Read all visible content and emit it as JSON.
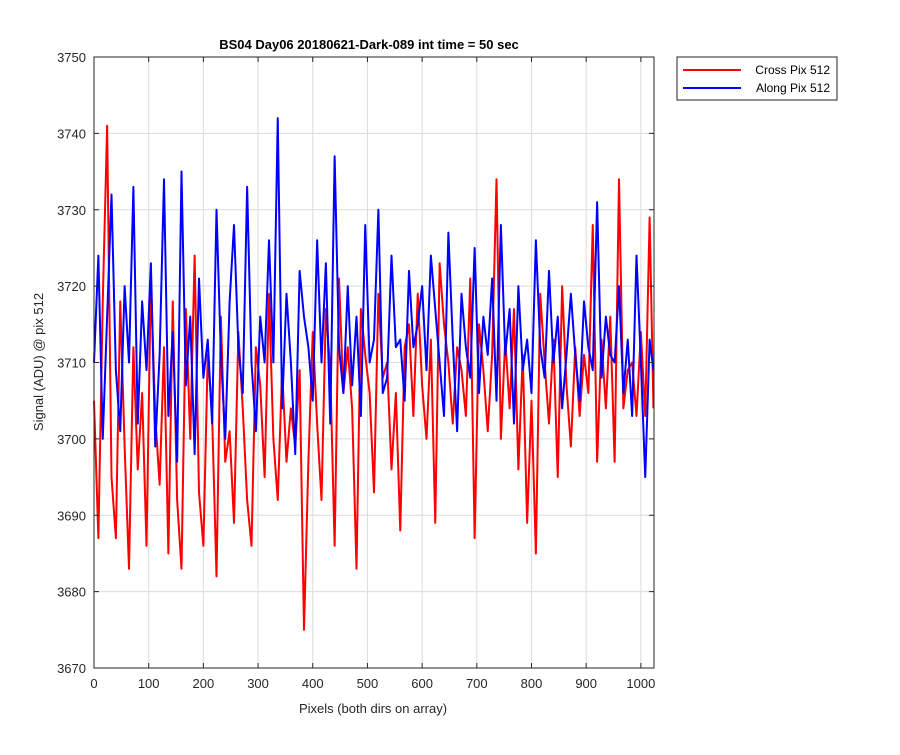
{
  "chart_data": {
    "type": "line",
    "title": "BS04 Day06 20180621-Dark-089 int time = 50 sec",
    "xlabel": "Pixels (both dirs on array)",
    "ylabel": "Signal (ADU) @ pix 512",
    "xlim": [
      0,
      1024
    ],
    "ylim": [
      3670,
      3750
    ],
    "xticks": [
      0,
      100,
      200,
      300,
      400,
      500,
      600,
      700,
      800,
      900,
      1000
    ],
    "yticks": [
      3670,
      3680,
      3690,
      3700,
      3710,
      3720,
      3730,
      3740,
      3750
    ],
    "grid": true,
    "legend_position": "outside-top-right",
    "series": [
      {
        "name": "Cross Pix 512",
        "color": "#ff0000",
        "x": [
          0,
          8,
          16,
          24,
          32,
          40,
          48,
          56,
          64,
          72,
          80,
          88,
          96,
          104,
          112,
          120,
          128,
          136,
          144,
          152,
          160,
          168,
          176,
          184,
          192,
          200,
          208,
          216,
          224,
          232,
          240,
          248,
          256,
          264,
          272,
          280,
          288,
          296,
          304,
          312,
          320,
          328,
          336,
          344,
          352,
          360,
          368,
          376,
          384,
          392,
          400,
          408,
          416,
          424,
          432,
          440,
          448,
          456,
          464,
          472,
          480,
          488,
          496,
          504,
          512,
          520,
          528,
          536,
          544,
          552,
          560,
          568,
          576,
          584,
          592,
          600,
          608,
          616,
          624,
          632,
          640,
          648,
          656,
          664,
          672,
          680,
          688,
          696,
          704,
          712,
          720,
          728,
          736,
          744,
          752,
          760,
          768,
          776,
          784,
          792,
          800,
          808,
          816,
          824,
          832,
          840,
          848,
          856,
          864,
          872,
          880,
          888,
          896,
          904,
          912,
          920,
          928,
          936,
          944,
          952,
          960,
          968,
          976,
          984,
          992,
          1000,
          1008,
          1016,
          1023
        ],
        "y": [
          3705,
          3687,
          3718,
          3741,
          3695,
          3687,
          3718,
          3699,
          3683,
          3712,
          3696,
          3706,
          3686,
          3721,
          3703,
          3694,
          3712,
          3685,
          3718,
          3692,
          3683,
          3717,
          3700,
          3724,
          3693,
          3686,
          3711,
          3703,
          3682,
          3716,
          3697,
          3701,
          3689,
          3714,
          3704,
          3692,
          3686,
          3712,
          3707,
          3695,
          3719,
          3700,
          3692,
          3709,
          3697,
          3704,
          3699,
          3709,
          3675,
          3697,
          3714,
          3702,
          3692,
          3717,
          3709,
          3686,
          3721,
          3706,
          3712,
          3704,
          3683,
          3717,
          3711,
          3706,
          3693,
          3719,
          3708,
          3710,
          3696,
          3706,
          3688,
          3712,
          3715,
          3703,
          3719,
          3707,
          3700,
          3713,
          3689,
          3723,
          3715,
          3710,
          3702,
          3712,
          3709,
          3703,
          3721,
          3687,
          3715,
          3709,
          3701,
          3711,
          3734,
          3700,
          3713,
          3704,
          3717,
          3696,
          3711,
          3689,
          3705,
          3685,
          3719,
          3710,
          3702,
          3713,
          3695,
          3720,
          3707,
          3699,
          3712,
          3703,
          3711,
          3706,
          3728,
          3697,
          3713,
          3704,
          3716,
          3697,
          3734,
          3704,
          3709,
          3710,
          3703,
          3714,
          3703,
          3729,
          3704
        ]
      },
      {
        "name": "Along Pix 512",
        "color": "#0000ff",
        "x": [
          0,
          8,
          16,
          24,
          32,
          40,
          48,
          56,
          64,
          72,
          80,
          88,
          96,
          104,
          112,
          120,
          128,
          136,
          144,
          152,
          160,
          168,
          176,
          184,
          192,
          200,
          208,
          216,
          224,
          232,
          240,
          248,
          256,
          264,
          272,
          280,
          288,
          296,
          304,
          312,
          320,
          328,
          336,
          344,
          352,
          360,
          368,
          376,
          384,
          392,
          400,
          408,
          416,
          424,
          432,
          440,
          448,
          456,
          464,
          472,
          480,
          488,
          496,
          504,
          512,
          520,
          528,
          536,
          544,
          552,
          560,
          568,
          576,
          584,
          592,
          600,
          608,
          616,
          624,
          632,
          640,
          648,
          656,
          664,
          672,
          680,
          688,
          696,
          704,
          712,
          720,
          728,
          736,
          744,
          752,
          760,
          768,
          776,
          784,
          792,
          800,
          808,
          816,
          824,
          832,
          840,
          848,
          856,
          864,
          872,
          880,
          888,
          896,
          904,
          912,
          920,
          928,
          936,
          944,
          952,
          960,
          968,
          976,
          984,
          992,
          1000,
          1008,
          1016,
          1023
        ],
        "y": [
          3710,
          3724,
          3700,
          3716,
          3732,
          3709,
          3701,
          3720,
          3710,
          3733,
          3702,
          3718,
          3709,
          3723,
          3699,
          3711,
          3734,
          3703,
          3714,
          3697,
          3735,
          3707,
          3716,
          3698,
          3721,
          3708,
          3713,
          3702,
          3730,
          3711,
          3700,
          3718,
          3728,
          3712,
          3706,
          3733,
          3710,
          3701,
          3716,
          3710,
          3726,
          3710,
          3742,
          3704,
          3719,
          3710,
          3698,
          3722,
          3716,
          3712,
          3705,
          3726,
          3710,
          3723,
          3702,
          3737,
          3712,
          3706,
          3720,
          3707,
          3716,
          3703,
          3728,
          3710,
          3713,
          3730,
          3706,
          3708,
          3724,
          3712,
          3713,
          3705,
          3722,
          3712,
          3715,
          3720,
          3709,
          3724,
          3717,
          3710,
          3703,
          3727,
          3713,
          3701,
          3719,
          3712,
          3708,
          3725,
          3706,
          3716,
          3711,
          3721,
          3705,
          3728,
          3711,
          3717,
          3702,
          3720,
          3709,
          3713,
          3706,
          3726,
          3712,
          3708,
          3722,
          3710,
          3716,
          3704,
          3711,
          3719,
          3711,
          3705,
          3718,
          3712,
          3709,
          3731,
          3708,
          3716,
          3711,
          3710,
          3720,
          3706,
          3713,
          3703,
          3724,
          3710,
          3695,
          3713,
          3709
        ]
      }
    ]
  }
}
